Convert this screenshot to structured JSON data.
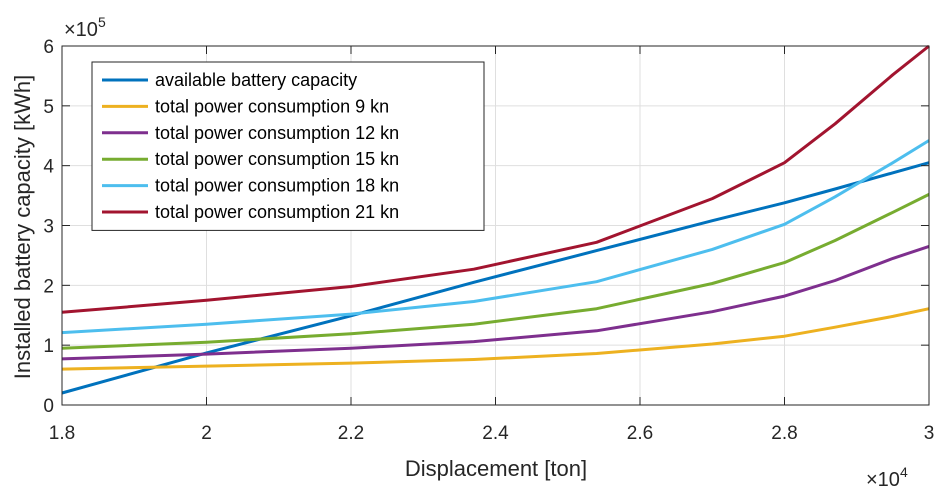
{
  "chart_data": {
    "type": "line",
    "title": "",
    "xlabel": "Displacement [ton]",
    "ylabel": "Installed battery capacity [kWh]",
    "x_multiplier": {
      "base": "×10",
      "exp": "4"
    },
    "y_multiplier": {
      "base": "×10",
      "exp": "5"
    },
    "xlim": [
      1.8,
      3.0
    ],
    "ylim": [
      0,
      6
    ],
    "x_ticks": [
      1.8,
      2.0,
      2.2,
      2.4,
      2.6,
      2.8,
      3.0
    ],
    "x_tick_labels": [
      "1.8",
      "2",
      "2.2",
      "2.4",
      "2.6",
      "2.8",
      "3"
    ],
    "y_ticks": [
      0,
      1,
      2,
      3,
      4,
      5,
      6
    ],
    "y_tick_labels": [
      "0",
      "1",
      "2",
      "3",
      "4",
      "5",
      "6"
    ],
    "grid": true,
    "legend_position": "top-left",
    "x": [
      1.8,
      2.0,
      2.2,
      2.37,
      2.54,
      2.7,
      2.8,
      2.87,
      2.95,
      3.0
    ],
    "series": [
      {
        "name": "available battery capacity",
        "color": "#0072BD",
        "values": [
          0.2,
          0.87,
          1.49,
          2.05,
          2.58,
          3.08,
          3.38,
          3.61,
          3.88,
          4.05
        ]
      },
      {
        "name": "total power consumption 9 kn",
        "color": "#EDB120",
        "values": [
          0.6,
          0.65,
          0.7,
          0.76,
          0.86,
          1.02,
          1.15,
          1.3,
          1.48,
          1.61
        ]
      },
      {
        "name": "total power consumption 12 kn",
        "color": "#7E2F8E",
        "values": [
          0.77,
          0.85,
          0.95,
          1.06,
          1.24,
          1.56,
          1.82,
          2.08,
          2.45,
          2.65
        ]
      },
      {
        "name": "total power consumption 15 kn",
        "color": "#77AC30",
        "values": [
          0.95,
          1.05,
          1.19,
          1.35,
          1.61,
          2.03,
          2.38,
          2.75,
          3.22,
          3.52
        ]
      },
      {
        "name": "total power consumption 18 kn",
        "color": "#4DBEEE",
        "values": [
          1.21,
          1.35,
          1.52,
          1.73,
          2.06,
          2.6,
          3.02,
          3.48,
          4.05,
          4.42
        ]
      },
      {
        "name": "total power consumption 21 kn",
        "color": "#A2142F",
        "values": [
          1.55,
          1.75,
          1.98,
          2.27,
          2.72,
          3.45,
          4.05,
          4.7,
          5.52,
          6.0
        ]
      }
    ]
  }
}
